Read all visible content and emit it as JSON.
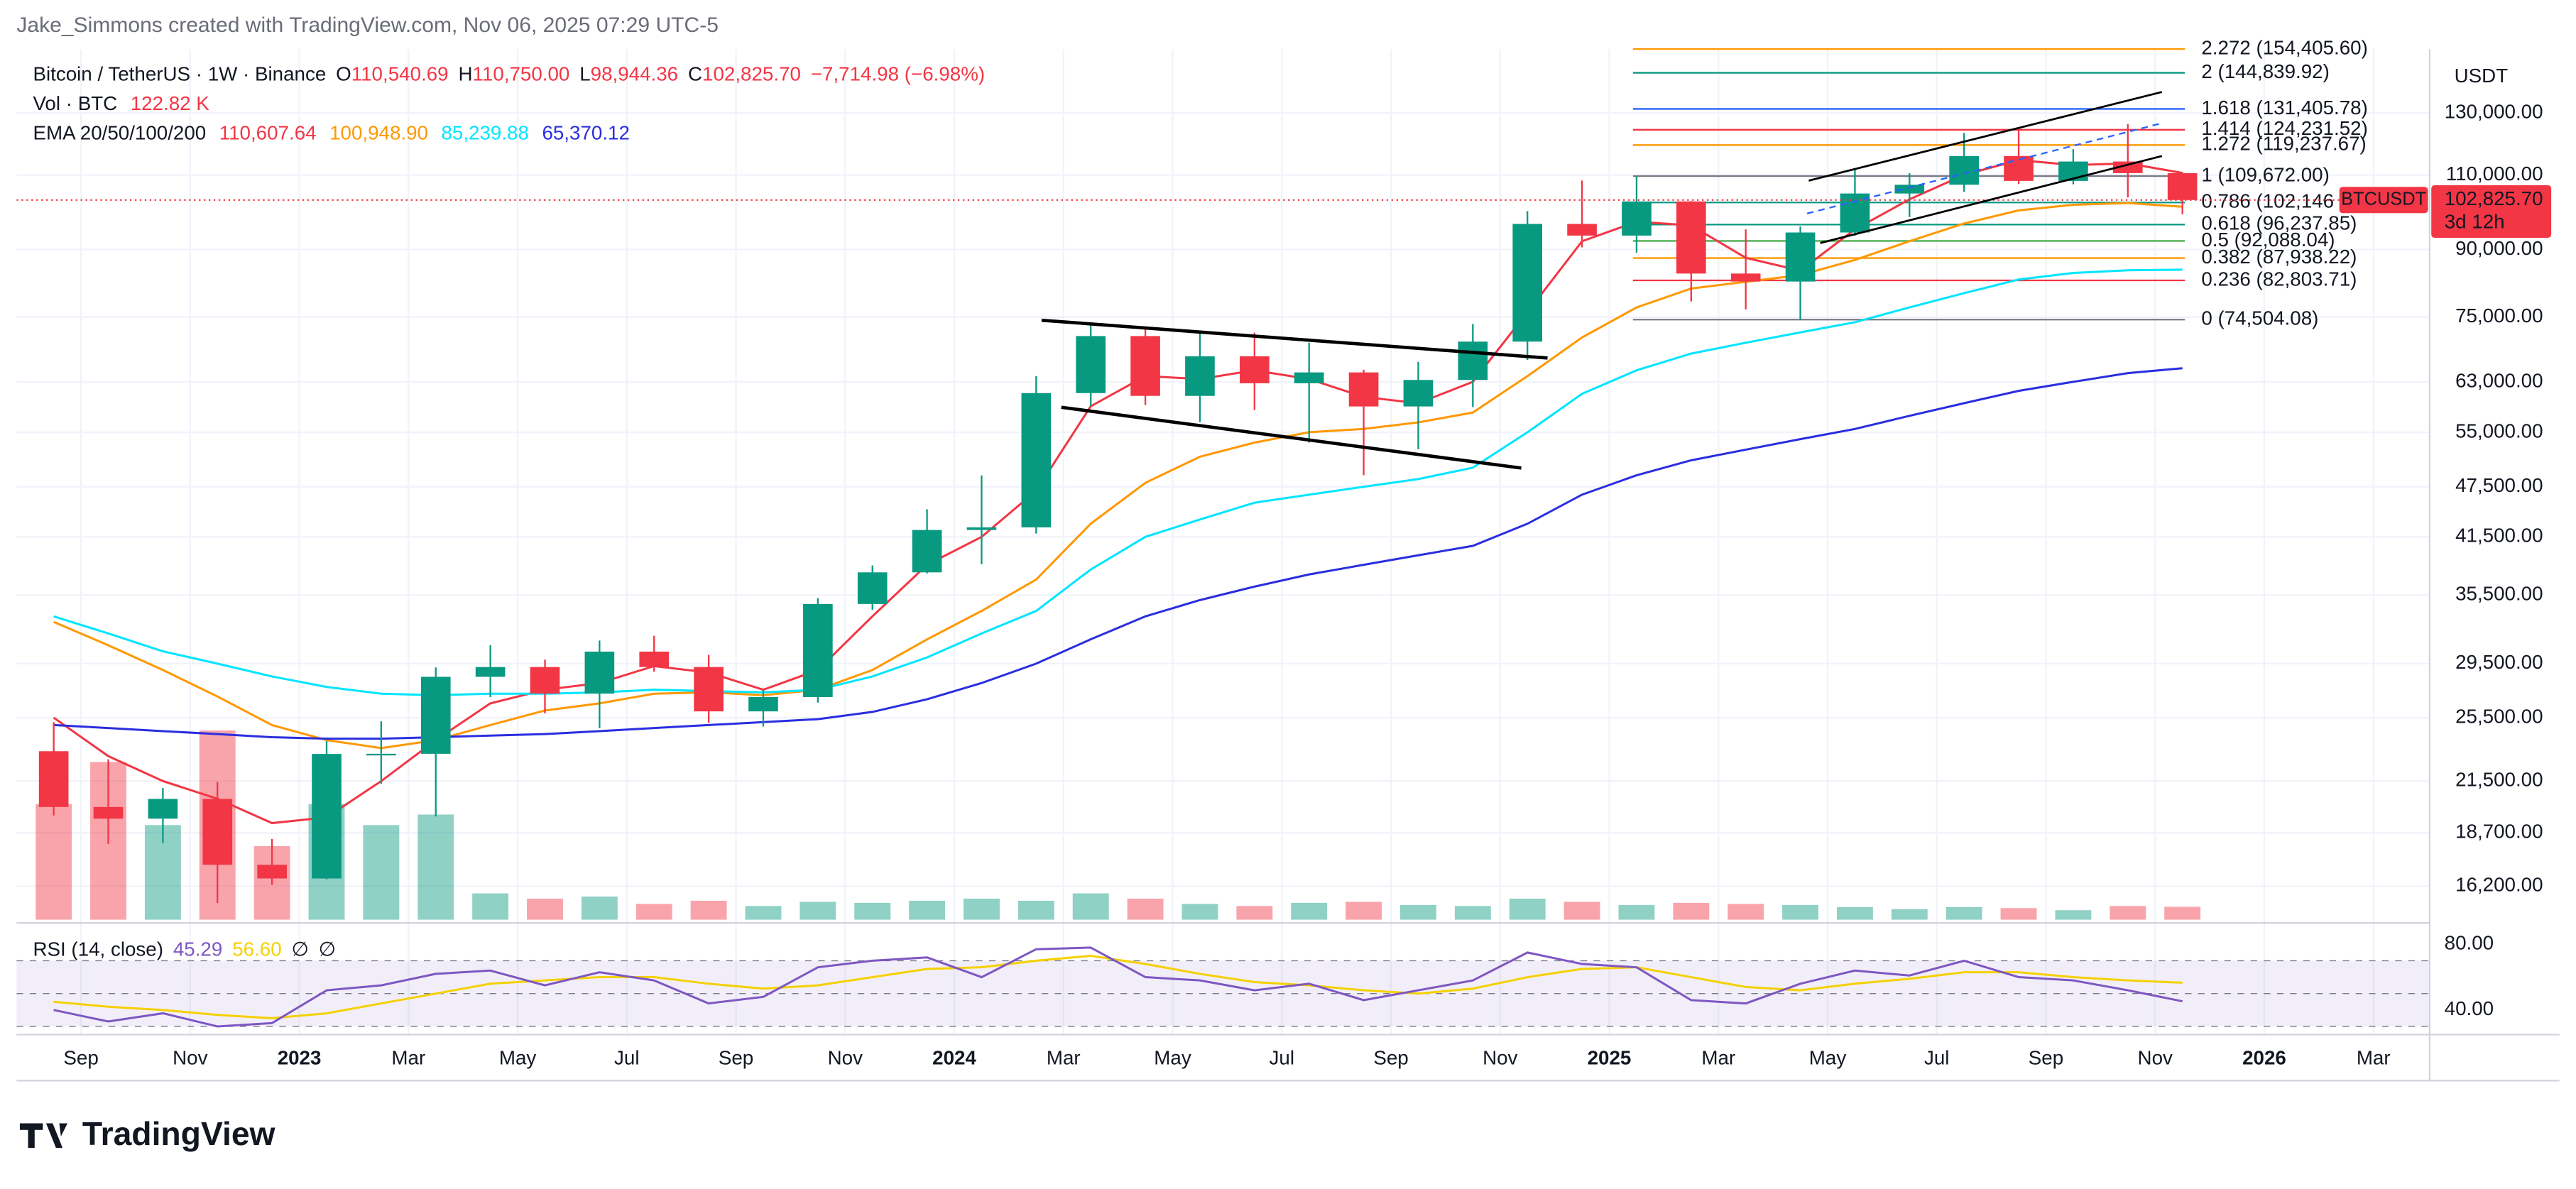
{
  "header": {
    "author": "Jake_Simmons created with TradingView.com, Nov 06, 2025 07:29 UTC-5",
    "ohlc": [
      {
        "key": "O",
        "value": "110,540.69"
      },
      {
        "key": "H",
        "value": "110,750.00"
      },
      {
        "key": "L",
        "value": "98,944.36"
      },
      {
        "key": "C",
        "value": "102,825.70"
      }
    ],
    "change": "−7,714.98 (−6.98%)",
    "ema_label": "EMA 20/50/100/200"
  },
  "footer": {
    "logo": "TradingView"
  },
  "chart_data": {
    "type": "candlestick",
    "title": "Bitcoin / TetherUS · 1W · Binance",
    "x": [
      "2022-08",
      "2022-09",
      "2022-10",
      "2022-11",
      "2022-12",
      "2023-01",
      "2023-02",
      "2023-03",
      "2023-04",
      "2023-05",
      "2023-06",
      "2023-07",
      "2023-08",
      "2023-09",
      "2023-10",
      "2023-11",
      "2023-12",
      "2024-01",
      "2024-02",
      "2024-03",
      "2024-04",
      "2024-05",
      "2024-06",
      "2024-07",
      "2024-08",
      "2024-09",
      "2024-10",
      "2024-11",
      "2024-12",
      "2025-01",
      "2025-02",
      "2025-03",
      "2025-04",
      "2025-05",
      "2025-06",
      "2025-07",
      "2025-08",
      "2025-09",
      "2025-10",
      "2025-11"
    ],
    "open": [
      23300,
      20050,
      19430,
      20490,
      17160,
      16540,
      23130,
      23140,
      28470,
      29230,
      27210,
      30470,
      29230,
      25940,
      26960,
      34640,
      37720,
      42280,
      42580,
      61130,
      71280,
      60670,
      67500,
      62770,
      64630,
      58970,
      63330,
      70220,
      96410,
      93430,
      102430,
      84350,
      82550,
      94210,
      104640,
      107140,
      115760,
      108250,
      114050,
      110540.69
    ],
    "high": [
      25200,
      22800,
      21100,
      21450,
      18400,
      23950,
      25250,
      29200,
      31000,
      29820,
      31390,
      31800,
      30200,
      27480,
      35200,
      38430,
      44700,
      48970,
      64000,
      73780,
      72800,
      71980,
      71950,
      70000,
      65100,
      66500,
      73620,
      99800,
      108350,
      109590,
      102500,
      95000,
      95750,
      111980,
      110530,
      123200,
      124470,
      117900,
      126200,
      110750
    ],
    "low": [
      19600,
      18150,
      18200,
      15480,
      16260,
      16500,
      21350,
      19550,
      26950,
      25800,
      24800,
      28860,
      25150,
      24900,
      26560,
      34100,
      37620,
      38550,
      41880,
      59000,
      59190,
      56550,
      58400,
      53500,
      49000,
      52550,
      58860,
      66830,
      90500,
      89250,
      78250,
      76600,
      74500,
      93400,
      98200,
      105100,
      107350,
      107270,
      103530,
      98944.36
    ],
    "close": [
      20050,
      19430,
      20490,
      17160,
      16540,
      23130,
      23140,
      28470,
      29230,
      27210,
      30470,
      29230,
      25940,
      26960,
      34640,
      37720,
      42280,
      42580,
      61130,
      71280,
      60670,
      67500,
      62770,
      64630,
      58970,
      63330,
      70220,
      96410,
      93430,
      102430,
      84350,
      82550,
      94210,
      104640,
      107140,
      115760,
      108250,
      114050,
      110540.69,
      102825.7
    ],
    "up_color": "#089981",
    "down_color": "#f23645",
    "ylim": [
      15000,
      155000
    ],
    "log_scale": true,
    "grid": true,
    "y_axis_label": "USDT",
    "yticks": [
      {
        "value": 130000,
        "label": "130,000.00"
      },
      {
        "value": 110000,
        "label": "110,000.00"
      },
      {
        "value": 90000,
        "label": "90,000.00"
      },
      {
        "value": 75000,
        "label": "75,000.00"
      },
      {
        "value": 63000,
        "label": "63,000.00"
      },
      {
        "value": 55000,
        "label": "55,000.00"
      },
      {
        "value": 47500,
        "label": "47,500.00"
      },
      {
        "value": 41500,
        "label": "41,500.00"
      },
      {
        "value": 35500,
        "label": "35,500.00"
      },
      {
        "value": 29500,
        "label": "29,500.00"
      },
      {
        "value": 25500,
        "label": "25,500.00"
      },
      {
        "value": 21500,
        "label": "21,500.00"
      },
      {
        "value": 18700,
        "label": "18,700.00"
      },
      {
        "value": 16200,
        "label": "16,200.00"
      }
    ],
    "xlim": [
      "2022-08",
      "2026-04"
    ],
    "xticks": [
      {
        "value": "2022-09",
        "label": "Sep"
      },
      {
        "value": "2022-11",
        "label": "Nov"
      },
      {
        "value": "2023-01",
        "label": "2023"
      },
      {
        "value": "2023-03",
        "label": "Mar"
      },
      {
        "value": "2023-05",
        "label": "May"
      },
      {
        "value": "2023-07",
        "label": "Jul"
      },
      {
        "value": "2023-09",
        "label": "Sep"
      },
      {
        "value": "2023-11",
        "label": "Nov"
      },
      {
        "value": "2024-01",
        "label": "2024"
      },
      {
        "value": "2024-03",
        "label": "Mar"
      },
      {
        "value": "2024-05",
        "label": "May"
      },
      {
        "value": "2024-07",
        "label": "Jul"
      },
      {
        "value": "2024-09",
        "label": "Sep"
      },
      {
        "value": "2024-11",
        "label": "Nov"
      },
      {
        "value": "2025-01",
        "label": "2025"
      },
      {
        "value": "2025-03",
        "label": "Mar"
      },
      {
        "value": "2025-05",
        "label": "May"
      },
      {
        "value": "2025-07",
        "label": "Jul"
      },
      {
        "value": "2025-09",
        "label": "Sep"
      },
      {
        "value": "2025-11",
        "label": "Nov"
      },
      {
        "value": "2026-01",
        "label": "2026"
      },
      {
        "value": "2026-03",
        "label": "Mar"
      }
    ],
    "series": [
      {
        "color": "#f23645",
        "legend_value": "110,607.64",
        "values": [
          25500,
          23000,
          21500,
          20500,
          19200,
          19500,
          21500,
          24000,
          26500,
          27500,
          28000,
          29300,
          28800,
          27500,
          29000,
          33500,
          38500,
          41500,
          47000,
          59000,
          64000,
          63500,
          65000,
          63500,
          60500,
          59500,
          63000,
          76000,
          92000,
          97000,
          96000,
          88000,
          85000,
          95000,
          103000,
          110000,
          114500,
          113000,
          113500,
          110607.64
        ]
      },
      {
        "color": "#ff9800",
        "legend_value": "100,948.90",
        "values": [
          33000,
          31000,
          29000,
          27000,
          25000,
          24000,
          23500,
          24000,
          25000,
          26000,
          26500,
          27200,
          27300,
          27100,
          27500,
          29000,
          31500,
          34000,
          37000,
          43000,
          48000,
          51500,
          53500,
          55000,
          55500,
          56500,
          58000,
          64000,
          71000,
          77000,
          81000,
          82500,
          84000,
          87500,
          92000,
          96500,
          100000,
          101500,
          102000,
          100948.9
        ]
      },
      {
        "color": "#00e5ff",
        "legend_value": "85,239.88",
        "values": [
          33500,
          32000,
          30500,
          29500,
          28500,
          27700,
          27200,
          27100,
          27200,
          27200,
          27300,
          27500,
          27400,
          27300,
          27500,
          28500,
          30000,
          32000,
          34000,
          38000,
          41500,
          43500,
          45500,
          46500,
          47500,
          48500,
          50000,
          55000,
          61000,
          65000,
          68000,
          70000,
          72000,
          74000,
          77000,
          80000,
          83000,
          84500,
          85100,
          85239.88
        ]
      },
      {
        "color": "#2a2ee0",
        "legend_value": "65,370.12",
        "values": [
          25000,
          24800,
          24600,
          24400,
          24200,
          24100,
          24100,
          24200,
          24300,
          24400,
          24600,
          24800,
          25000,
          25200,
          25400,
          25900,
          26800,
          28000,
          29500,
          31500,
          33500,
          35000,
          36300,
          37500,
          38500,
          39500,
          40500,
          43000,
          46500,
          49000,
          51000,
          52500,
          54000,
          55500,
          57500,
          59500,
          61500,
          63000,
          64500,
          65370.12
        ]
      }
    ],
    "volume": {
      "label": "Vol · BTC",
      "legend_value": "122.82 K",
      "ylim": [
        0,
        2000
      ],
      "values": [
        1100,
        1500,
        900,
        1800,
        700,
        1100,
        900,
        1000,
        250,
        200,
        220,
        150,
        180,
        130,
        170,
        160,
        180,
        200,
        180,
        250,
        200,
        150,
        130,
        160,
        170,
        140,
        130,
        200,
        170,
        140,
        160,
        150,
        140,
        120,
        100,
        120,
        110,
        90,
        130,
        122.82
      ]
    },
    "rsi": {
      "label": "RSI (14, close)",
      "legend_values": [
        "45.29",
        "56.60",
        "∅",
        "∅"
      ],
      "color": "#7e57c2",
      "ma_color": "#f5d000",
      "ylim": [
        25,
        90
      ],
      "yticks": [
        {
          "value": 80,
          "label": "80.00"
        },
        {
          "value": 40,
          "label": "40.00"
        }
      ],
      "bands": [
        70,
        50,
        30
      ],
      "values": [
        40,
        33,
        38,
        30,
        32,
        52,
        55,
        62,
        64,
        55,
        63,
        58,
        44,
        48,
        66,
        70,
        72,
        60,
        77,
        78,
        60,
        58,
        52,
        56,
        46,
        52,
        58,
        75,
        68,
        66,
        46,
        44,
        56,
        64,
        61,
        70,
        60,
        58,
        52,
        45.29
      ],
      "ma_values": [
        45,
        42,
        40,
        37,
        35,
        38,
        44,
        50,
        56,
        58,
        60,
        60,
        56,
        53,
        55,
        60,
        65,
        66,
        70,
        73,
        68,
        62,
        57,
        55,
        52,
        50,
        53,
        60,
        65,
        66,
        60,
        54,
        52,
        56,
        59,
        63,
        63,
        60,
        58,
        56.6
      ]
    },
    "fib_levels": [
      {
        "label": "2.272 (154,405.60)",
        "price": 154405.6,
        "color": "#ff9800"
      },
      {
        "label": "2 (144,839.92)",
        "price": 144839.92,
        "color": "#089981"
      },
      {
        "label": "1.618 (131,405.78)",
        "price": 131405.78,
        "color": "#2962ff"
      },
      {
        "label": "1.414 (124,231.52)",
        "price": 124231.52,
        "color": "#f23645"
      },
      {
        "label": "1.272 (119,237.67)",
        "price": 119237.67,
        "color": "#ff9800"
      },
      {
        "label": "1 (109,672.00)",
        "price": 109672,
        "color": "#787b86"
      },
      {
        "label": "0.786 (102,146",
        "price": 102146,
        "color": "#089981"
      },
      {
        "label": "0.618 (96,237.85)",
        "price": 96237.85,
        "color": "#089981"
      },
      {
        "label": "0.5 (92,088.04)",
        "price": 92088.04,
        "color": "#4caf50"
      },
      {
        "label": "0.382 (87,938.22)",
        "price": 87938.22,
        "color": "#ff9800"
      },
      {
        "label": "0.236 (82,803.71)",
        "price": 82803.71,
        "color": "#f23645"
      },
      {
        "label": "0 (74,504.08)",
        "price": 74504.08,
        "color": "#787b86"
      }
    ],
    "last_price": {
      "symbol": "BTCUSDT",
      "label": "102,825.70",
      "value": 102825.7,
      "countdown": "3d 12h",
      "color": "#f23645"
    }
  }
}
